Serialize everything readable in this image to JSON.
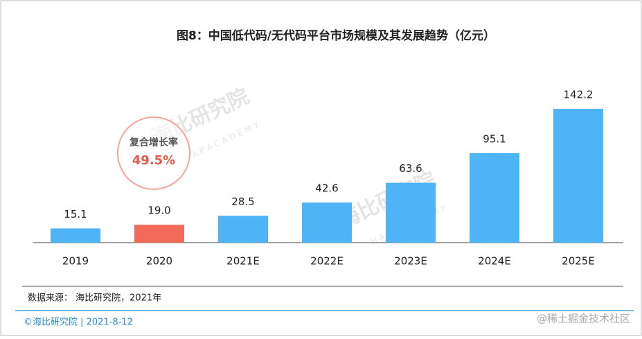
{
  "chart_data": {
    "type": "bar",
    "title": "图8：中国低代码/无代码平台市场规模及其发展趋势（亿元）",
    "categories": [
      "2019",
      "2020",
      "2021E",
      "2022E",
      "2023E",
      "2024E",
      "2025E"
    ],
    "values": [
      15.1,
      19.0,
      28.5,
      42.6,
      63.6,
      95.1,
      142.2
    ],
    "value_labels": [
      "15.1",
      "19.0",
      "28.5",
      "42.6",
      "63.6",
      "95.1",
      "142.2"
    ],
    "colors": [
      "#4fb4f6",
      "#f26a5a",
      "#4fb4f6",
      "#4fb4f6",
      "#4fb4f6",
      "#4fb4f6",
      "#4fb4f6"
    ],
    "annotation_title": "复合增长率",
    "annotation_value": "49.5%",
    "watermark": "海比研究院",
    "watermark_sub": "H A P   A C A D E M Y",
    "source": "数据来源： 海比研究院，2021年",
    "footer": "©海比研究院  |  2021-8-12",
    "site_mark": "@稀土掘金技术社区"
  }
}
